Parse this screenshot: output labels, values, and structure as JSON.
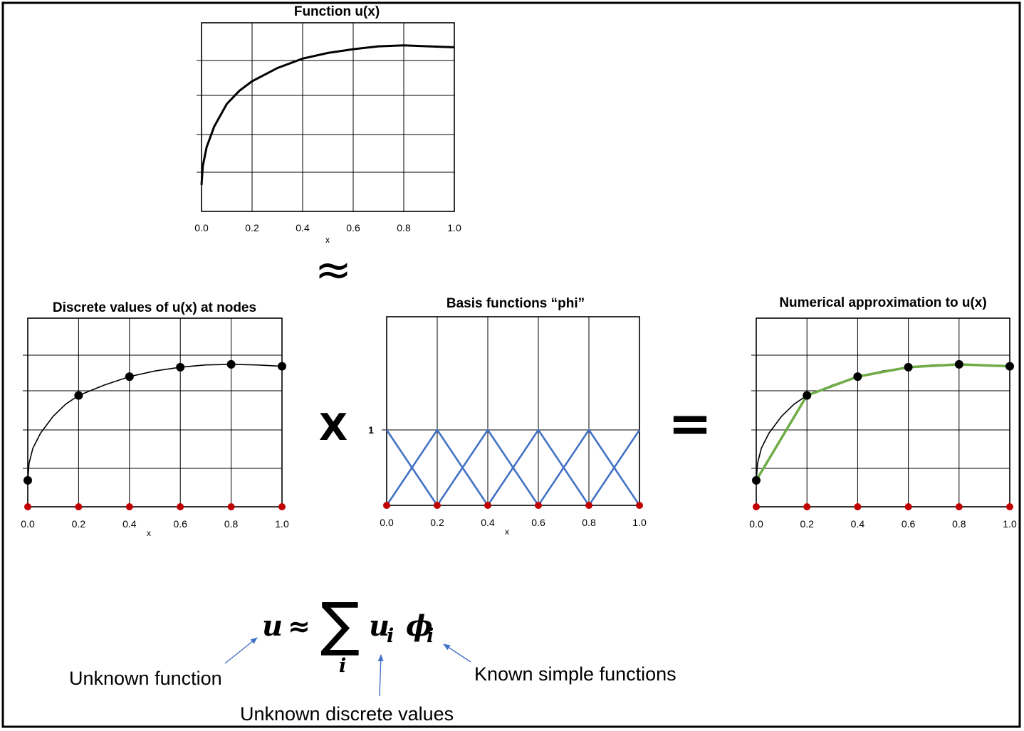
{
  "charts": {
    "top": {
      "title": "Function u(x)",
      "x_ticks": [
        "0.0",
        "0.2",
        "0.4",
        "0.6",
        "0.8",
        "1.0"
      ],
      "xlabel": "x"
    },
    "discrete": {
      "title": "Discrete values of u(x) at nodes",
      "x_ticks": [
        "0.0",
        "0.2",
        "0.4",
        "0.6",
        "0.8",
        "1.0"
      ],
      "xlabel": "x"
    },
    "basis": {
      "title": "Basis functions “phi”",
      "x_ticks": [
        "0.0",
        "0.2",
        "0.4",
        "0.6",
        "0.8",
        "1.0"
      ],
      "xlabel": "x",
      "y_tick": "1"
    },
    "approx": {
      "title": "Numerical approximation to u(x)",
      "x_ticks": [
        "0.0",
        "0.2",
        "0.4",
        "0.6",
        "0.8",
        "1.0"
      ]
    }
  },
  "operators": {
    "approx": "≈",
    "times": "X",
    "equals": "="
  },
  "equation": {
    "u": "u",
    "approx": "≈",
    "sum": "∑",
    "sum_index": "i",
    "u_i": "u",
    "u_sub": "i",
    "phi": "ϕ",
    "phi_sub": "i"
  },
  "annotations": {
    "unknown_function": "Unknown function",
    "unknown_values": "Unknown discrete values",
    "known_functions": "Known simple functions"
  },
  "colors": {
    "curve": "#000000",
    "node_marker": "#c00000",
    "basis": "#4472c4",
    "approximation": "#70ad47",
    "arrow": "#4472c4"
  },
  "chart_data": [
    {
      "type": "line",
      "name": "function-u",
      "x": [
        0.0,
        0.005,
        0.02,
        0.05,
        0.1,
        0.15,
        0.2,
        0.3,
        0.4,
        0.5,
        0.6,
        0.7,
        0.8,
        0.9,
        1.0
      ],
      "y": [
        0.14,
        0.24,
        0.34,
        0.45,
        0.57,
        0.64,
        0.69,
        0.76,
        0.81,
        0.84,
        0.86,
        0.875,
        0.88,
        0.875,
        0.87
      ],
      "xlim": [
        0,
        1
      ],
      "ylim": [
        0,
        1
      ]
    },
    {
      "type": "scatter",
      "name": "discrete-nodes",
      "x": [
        0.0,
        0.2,
        0.4,
        0.6,
        0.8,
        1.0
      ],
      "y": [
        0.14,
        0.59,
        0.69,
        0.74,
        0.755,
        0.745
      ],
      "xlim": [
        0,
        1
      ],
      "ylim": [
        0,
        1
      ]
    },
    {
      "type": "line",
      "name": "basis-hat-functions",
      "nodes": [
        0.0,
        0.2,
        0.4,
        0.6,
        0.8,
        1.0
      ],
      "peak": 1,
      "xlim": [
        0,
        1
      ]
    },
    {
      "type": "line",
      "name": "piecewise-linear-approximation",
      "x": [
        0.0,
        0.2,
        0.4,
        0.6,
        0.8,
        1.0
      ],
      "y": [
        0.14,
        0.59,
        0.69,
        0.74,
        0.755,
        0.745
      ],
      "xlim": [
        0,
        1
      ],
      "ylim": [
        0,
        1
      ]
    }
  ]
}
